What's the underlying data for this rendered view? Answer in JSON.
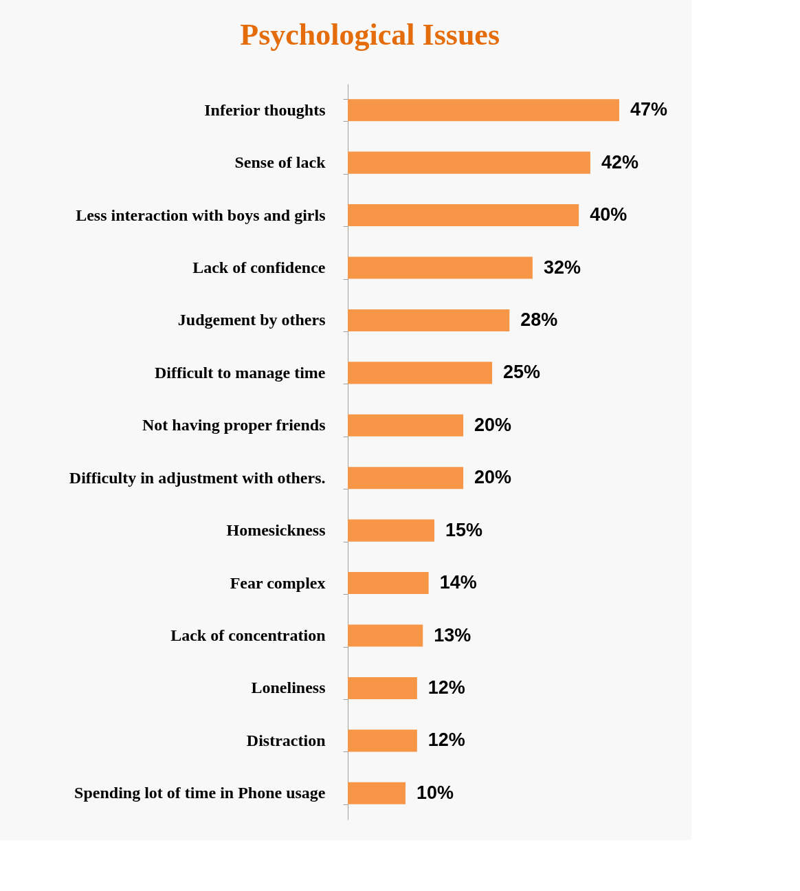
{
  "chart_data": {
    "type": "bar",
    "orientation": "horizontal",
    "title": "Psychological Issues",
    "categories": [
      "Inferior thoughts",
      "Sense of lack",
      "Less interaction with boys and girls",
      "Lack of confidence",
      "Judgement by others",
      "Difficult to manage time",
      "Not having proper friends",
      "Difficulty in adjustment with others.",
      "Homesickness",
      "Fear complex",
      "Lack of concentration",
      "Loneliness",
      "Distraction",
      "Spending lot of time in Phone usage"
    ],
    "values": [
      47,
      42,
      40,
      32,
      28,
      25,
      20,
      20,
      15,
      14,
      13,
      12,
      12,
      10
    ],
    "value_labels": [
      "47%",
      "42%",
      "40%",
      "32%",
      "28%",
      "25%",
      "20%",
      "20%",
      "15%",
      "14%",
      "13%",
      "12%",
      "12%",
      "10%"
    ],
    "color": "#f79646",
    "tick_labels": "y"
  }
}
